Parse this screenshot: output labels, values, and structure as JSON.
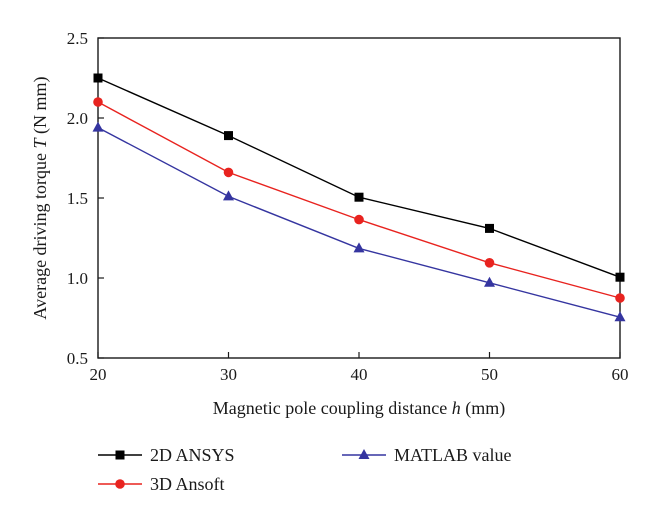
{
  "chart_data": {
    "type": "line",
    "x": [
      20,
      30,
      40,
      50,
      60
    ],
    "xlim": [
      20,
      60
    ],
    "ylim": [
      0.5,
      2.5
    ],
    "xticks": [
      "20",
      "30",
      "40",
      "50",
      "60"
    ],
    "yticks": [
      "0.5",
      "1.0",
      "1.5",
      "2.0",
      "2.5"
    ],
    "xticks_values": [
      20,
      30,
      40,
      50,
      60
    ],
    "yticks_values": [
      0.5,
      1.0,
      1.5,
      2.0,
      2.5
    ],
    "xlabel": {
      "prefix": "Magnetic pole coupling distance ",
      "var": "h",
      "suffix": " (mm)"
    },
    "ylabel": {
      "prefix": "Average driving torque ",
      "var": "T",
      "suffix": " (N mm)"
    },
    "grid": false,
    "legend_position": "bottom",
    "series": [
      {
        "name": "2D ANSYS",
        "color": "#000000",
        "marker": "square",
        "values": [
          2.25,
          1.89,
          1.505,
          1.31,
          1.005
        ]
      },
      {
        "name": "3D Ansoft",
        "color": "#e8231f",
        "marker": "circle",
        "values": [
          2.1,
          1.66,
          1.365,
          1.095,
          0.875
        ]
      },
      {
        "name": "MATLAB value",
        "color": "#3535a0",
        "marker": "triangle",
        "values": [
          1.94,
          1.51,
          1.185,
          0.97,
          0.755
        ]
      }
    ]
  }
}
